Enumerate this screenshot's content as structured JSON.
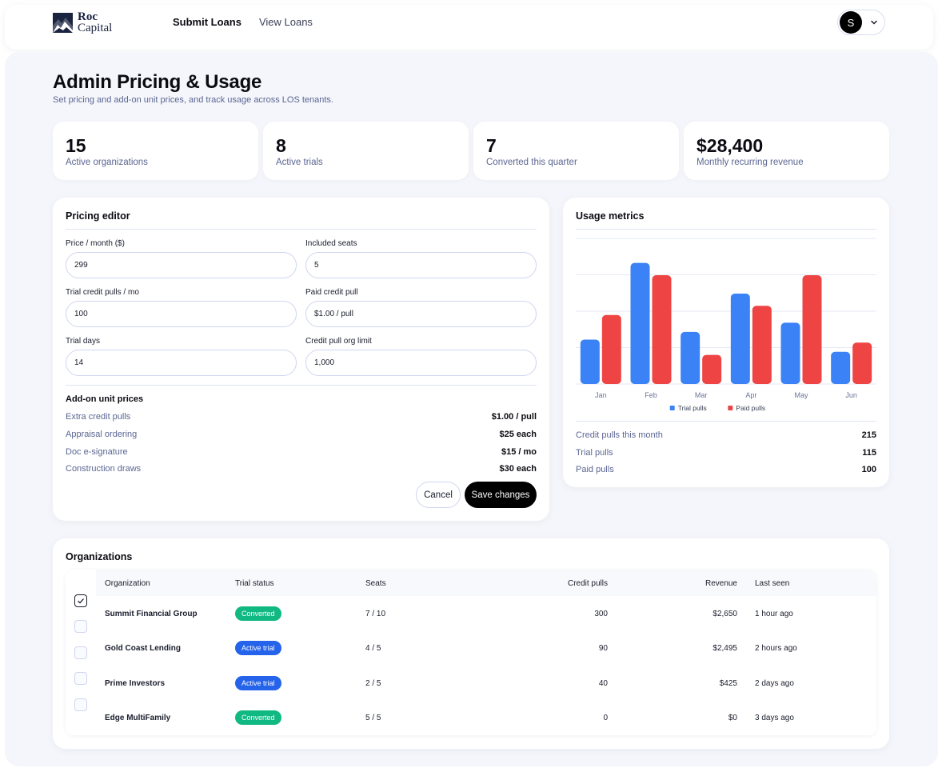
{
  "brand": {
    "name_line1": "Roc",
    "name_line2": "Capital"
  },
  "nav": {
    "items": [
      {
        "label": "Submit Loans",
        "active": true
      },
      {
        "label": "View Loans",
        "active": false
      }
    ]
  },
  "user": {
    "initial": "S"
  },
  "page": {
    "title": "Admin Pricing & Usage",
    "subtitle": "Set pricing and add-on unit prices, and track usage across LOS tenants."
  },
  "stats": [
    {
      "value": "15",
      "label": "Active organizations"
    },
    {
      "value": "8",
      "label": "Active trials"
    },
    {
      "value": "7",
      "label": "Converted this quarter"
    },
    {
      "value": "$28,400",
      "label": "Monthly recurring revenue"
    }
  ],
  "pricing_editor": {
    "title": "Pricing editor",
    "fields": [
      {
        "label": "Price / month ($)",
        "value": "299"
      },
      {
        "label": "Included seats",
        "value": "5"
      },
      {
        "label": "Trial credit pulls / mo",
        "value": "100"
      },
      {
        "label": "Paid credit pull",
        "value": "$1.00 / pull"
      },
      {
        "label": "Trial days",
        "value": "14"
      },
      {
        "label": "Credit pull org limit",
        "value": "1,000"
      }
    ],
    "addons_title": "Add-on unit prices",
    "addons": [
      {
        "name": "Extra credit pulls",
        "price": "$1.00 / pull"
      },
      {
        "name": "Appraisal ordering",
        "price": "$25 each"
      },
      {
        "name": "Doc e-signature",
        "price": "$15 / mo"
      },
      {
        "name": "Construction draws",
        "price": "$30 each"
      }
    ],
    "cancel_label": "Cancel",
    "save_label": "Save changes"
  },
  "usage": {
    "title": "Usage metrics",
    "metrics": [
      {
        "name": "Credit pulls this month",
        "value": "215"
      },
      {
        "name": "Trial pulls",
        "value": "115"
      },
      {
        "name": "Paid pulls",
        "value": "100"
      }
    ]
  },
  "chart_data": {
    "type": "bar",
    "categories": [
      "Jan",
      "Feb",
      "Mar",
      "Apr",
      "May",
      "Jun"
    ],
    "series": [
      {
        "name": "Trial pulls",
        "color": "#3b82f6",
        "values": [
          29,
          79,
          34,
          59,
          40,
          21
        ]
      },
      {
        "name": "Paid pulls",
        "color": "#ef4444",
        "values": [
          45,
          71,
          19,
          51,
          71,
          27
        ]
      }
    ],
    "ylim": [
      0,
      95
    ],
    "grid": true,
    "legend": "bottom-center"
  },
  "organizations": {
    "title": "Organizations",
    "columns": [
      "Organization",
      "Trial status",
      "Seats",
      "Credit pulls",
      "Revenue",
      "Last seen"
    ],
    "rows": [
      {
        "name": "Summit Financial Group",
        "status": "Converted",
        "status_color": "#10b981",
        "seats": "7 / 10",
        "pulls": "300",
        "revenue": "$2,650",
        "last_seen": "1 hour ago"
      },
      {
        "name": "Gold Coast Lending",
        "status": "Active trial",
        "status_color": "#2563eb",
        "seats": "4 / 5",
        "pulls": "90",
        "revenue": "$2,495",
        "last_seen": "2 hours ago"
      },
      {
        "name": "Prime Investors",
        "status": "Active trial",
        "status_color": "#2563eb",
        "seats": "2 / 5",
        "pulls": "40",
        "revenue": "$425",
        "last_seen": "2 days ago"
      },
      {
        "name": "Edge MultiFamily",
        "status": "Converted",
        "status_color": "#10b981",
        "seats": "5 / 5",
        "pulls": "0",
        "revenue": "$0",
        "last_seen": "3 days ago"
      }
    ],
    "checked": [
      true,
      false,
      false,
      false,
      false
    ]
  }
}
